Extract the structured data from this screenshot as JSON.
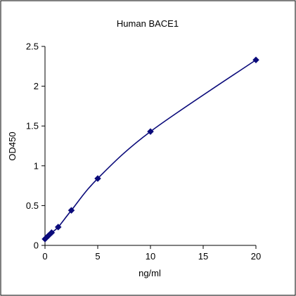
{
  "chart_data": {
    "type": "line",
    "title": "Human BACE1",
    "xlabel": "ng/ml",
    "ylabel": "OD450",
    "xlim": [
      0,
      20
    ],
    "ylim": [
      0,
      2.5
    ],
    "x_ticks": [
      0,
      5,
      10,
      15,
      20
    ],
    "y_ticks": [
      0,
      0.5,
      1,
      1.5,
      2,
      2.5
    ],
    "x_tick_labels": [
      "0",
      "5",
      "10",
      "15",
      "20"
    ],
    "y_tick_labels": [
      "0",
      "0.5",
      "1",
      "1.5",
      "2",
      "2.5"
    ],
    "grid": false,
    "legend": "none",
    "series": [
      {
        "x": [
          0,
          0.156,
          0.3125,
          0.625,
          1.25,
          2.5,
          5,
          10,
          20
        ],
        "y": [
          0.08,
          0.1,
          0.12,
          0.16,
          0.23,
          0.44,
          0.84,
          1.43,
          2.33
        ],
        "marker": "diamond",
        "color": "#0a0a7a",
        "curve": "smooth"
      }
    ]
  }
}
